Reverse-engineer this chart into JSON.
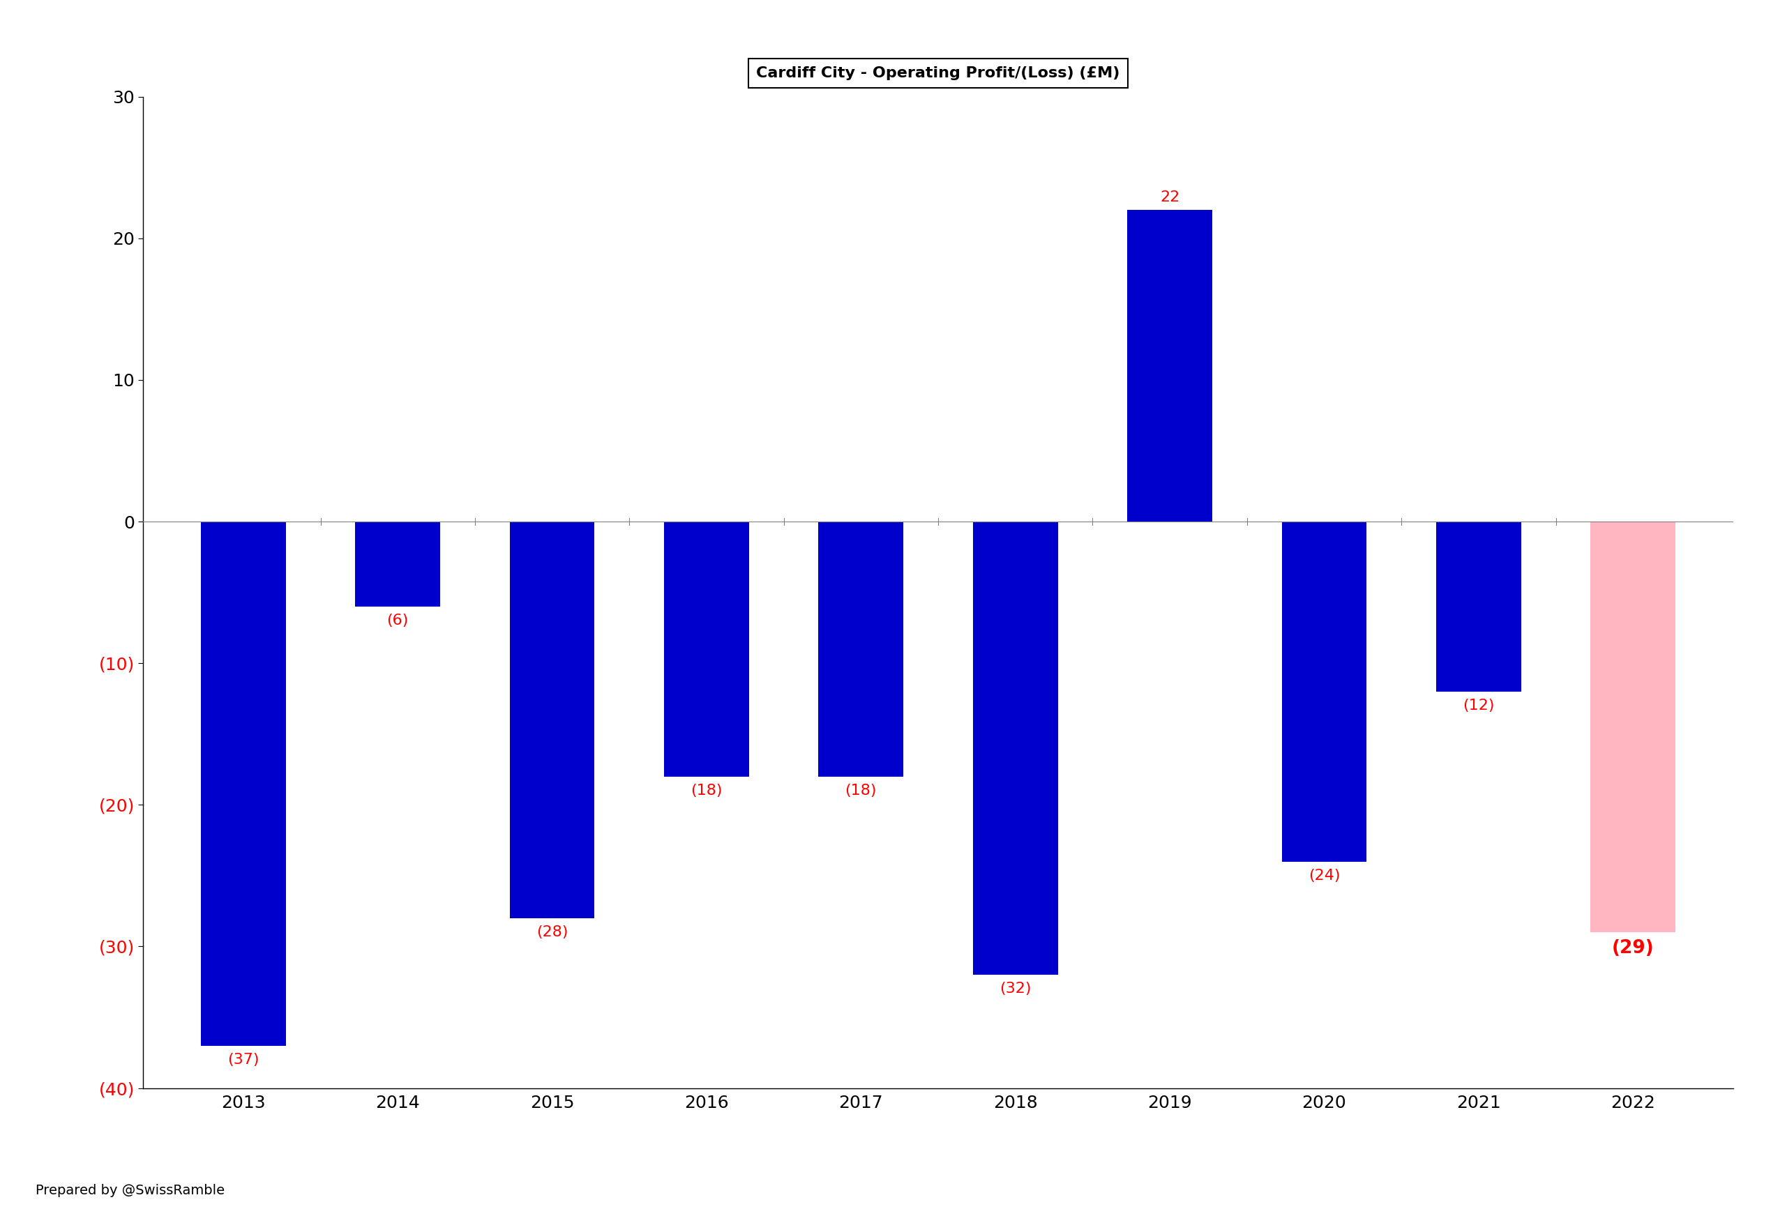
{
  "title": "Cardiff City - Operating Profit/(Loss) (£M)",
  "categories": [
    "2013",
    "2014",
    "2015",
    "2016",
    "2017",
    "2018",
    "2019",
    "2020",
    "2021",
    "2022"
  ],
  "values": [
    -37,
    -6,
    -28,
    -18,
    -18,
    -32,
    22,
    -24,
    -12,
    -29
  ],
  "bar_colors": [
    "#0000CC",
    "#0000CC",
    "#0000CC",
    "#0000CC",
    "#0000CC",
    "#0000CC",
    "#0000CC",
    "#0000CC",
    "#0000CC",
    "#FFB6C1"
  ],
  "label_values": [
    "(37)",
    "(6)",
    "(28)",
    "(18)",
    "(18)",
    "(32)",
    "22",
    "(24)",
    "(12)",
    "(29)"
  ],
  "label_color": "red",
  "ylim": [
    -40,
    30
  ],
  "yticks": [
    -40,
    -30,
    -20,
    -10,
    0,
    10,
    20,
    30
  ],
  "ytick_labels_black": [
    "0",
    "10",
    "20",
    "30"
  ],
  "ytick_labels_red": [
    "(40)",
    "(30)",
    "(20)",
    "(10)"
  ],
  "footnote": "Prepared by @SwissRamble",
  "background_color": "#FFFFFF",
  "plot_background": "#FFFFFF",
  "title_fontsize": 16,
  "tick_fontsize": 18,
  "label_fontsize": 16,
  "footnote_fontsize": 14,
  "bar_width": 0.55
}
